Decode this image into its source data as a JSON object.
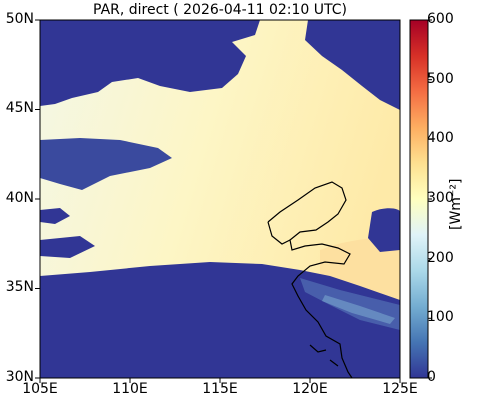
{
  "title": "PAR, direct ( 2026-04-11 02:10 UTC)",
  "map": {
    "lat_ticks": [
      "50N",
      "45N",
      "40N",
      "35N",
      "30N"
    ],
    "lon_ticks": [
      "105E",
      "110E",
      "115E",
      "120E",
      "125E"
    ]
  },
  "colorbar": {
    "ticks": [
      "600",
      "500",
      "400",
      "300",
      "200",
      "100",
      "0"
    ],
    "label": "[Wm⁻²]",
    "colors": [
      "#313695",
      "#4575b4",
      "#74add1",
      "#abd9e9",
      "#e0f3f8",
      "#ffffbf",
      "#fee090",
      "#fdae61",
      "#f46d43",
      "#d73027",
      "#a50026"
    ]
  }
}
